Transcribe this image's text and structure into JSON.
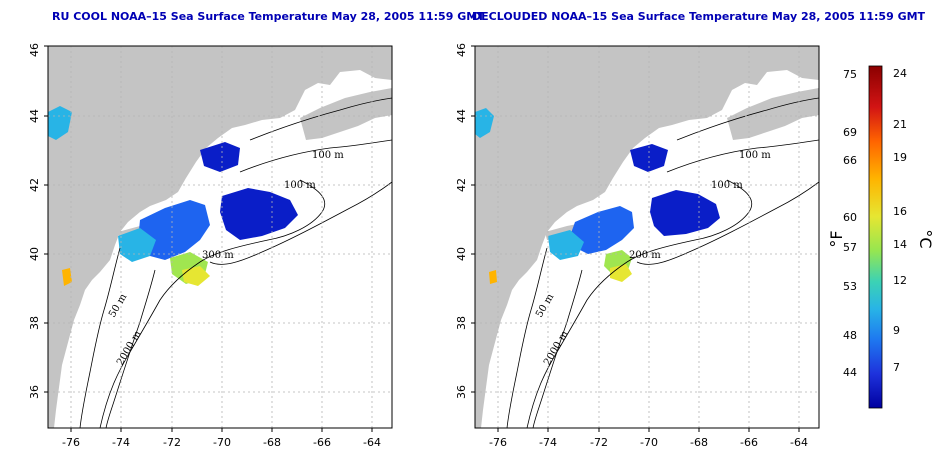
{
  "maps": [
    {
      "id": "left",
      "title": "RU COOL NOAA–15 Sea Surface Temperature May 28, 2005 11:59 GMT",
      "lon_ticks": [
        "-76",
        "-74",
        "-72",
        "-70",
        "-68",
        "-66",
        "-64"
      ],
      "lat_ticks": [
        "36",
        "38",
        "40",
        "42",
        "44",
        "46"
      ],
      "contour_labels": [
        "100 m",
        "100 m",
        "300 m",
        "50 m",
        "2000 m"
      ]
    },
    {
      "id": "right",
      "title": "DECLOUDED NOAA–15 Sea Surface Temperature May 28, 2005 11:59 GMT",
      "lon_ticks": [
        "-76",
        "-74",
        "-72",
        "-70",
        "-68",
        "-66",
        "-64"
      ],
      "lat_ticks": [
        "36",
        "38",
        "40",
        "42",
        "44",
        "46"
      ],
      "contour_labels": [
        "100 m",
        "100 m",
        "200 m",
        "50 m",
        "2000 m"
      ]
    }
  ],
  "colorbar": {
    "fahrenheit_unit": "°F",
    "celsius_unit": "°C",
    "fahrenheit_ticks": [
      "75",
      "69",
      "66",
      "60",
      "57",
      "53",
      "48",
      "44"
    ],
    "celsius_ticks": [
      "24",
      "21",
      "19",
      "16",
      "14",
      "12",
      "9",
      "7"
    ],
    "colors": [
      "#8b0000",
      "#d21414",
      "#ff6400",
      "#ffb400",
      "#e6e632",
      "#96e650",
      "#3cd2b4",
      "#28b4e6",
      "#1e78f0",
      "#1e32dc",
      "#0000a0"
    ]
  },
  "colors": {
    "land": "#c4c4c4",
    "ocean": "#ffffff",
    "title": "#0000b4",
    "grid": "#b4b4b4"
  }
}
